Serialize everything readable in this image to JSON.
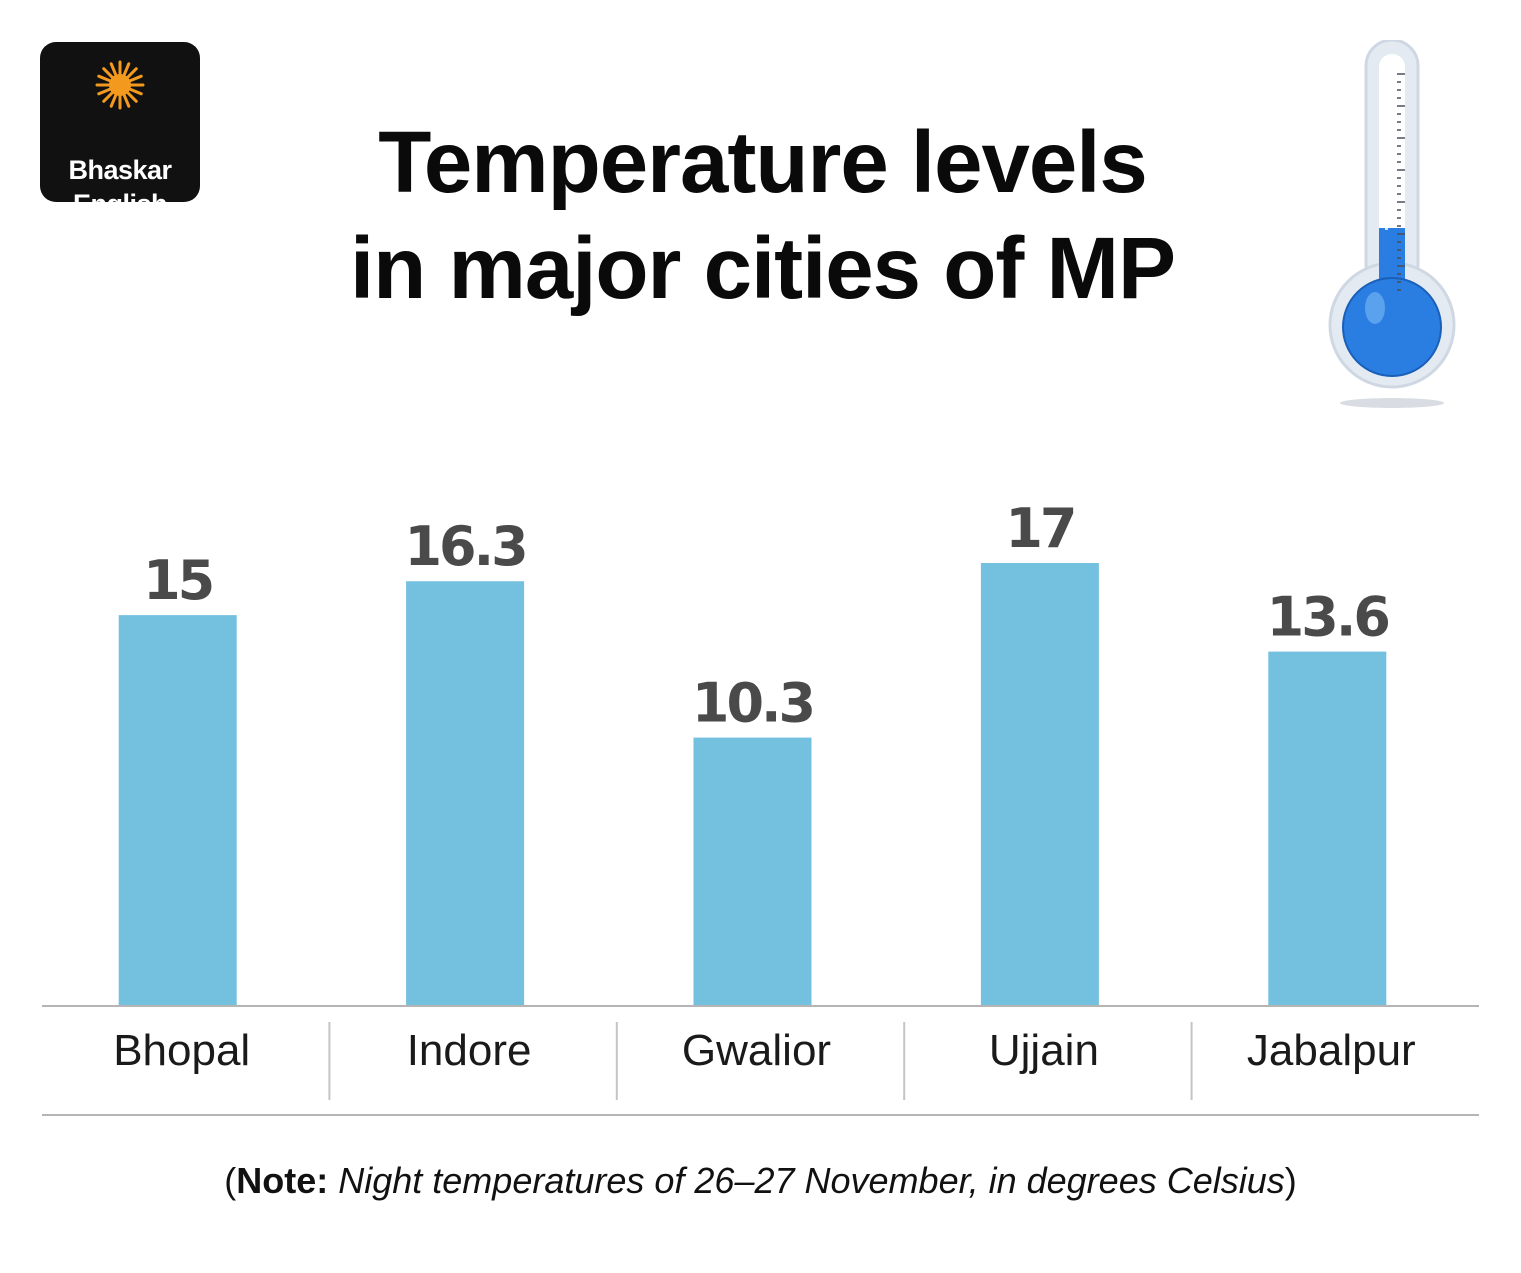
{
  "logo": {
    "line1": "Bhaskar",
    "line2": "English",
    "icon": "sun-icon",
    "sun_color": "#f39a1e",
    "bg_color": "#111111"
  },
  "title": {
    "line1": "Temperature levels",
    "line2": "in major cities of MP"
  },
  "thermometer": {
    "icon": "thermometer-icon",
    "liquid_color": "#2a7de1"
  },
  "chart_data": {
    "type": "bar",
    "categories": [
      "Bhopal",
      "Indore",
      "Gwalior",
      "Ujjain",
      "Jabalpur"
    ],
    "values": [
      15,
      16.3,
      10.3,
      17,
      13.6
    ],
    "value_labels": [
      "15",
      "16.3",
      "10.3",
      "17",
      "13.6"
    ],
    "ylim": [
      0,
      17
    ],
    "bar_color": "#74c0df",
    "grid": false,
    "legend": "none"
  },
  "note": {
    "prefix": "(",
    "bold": "Note:",
    "text": " Night temperatures of 26–27 November, in degrees Celsius",
    "suffix": ")"
  }
}
